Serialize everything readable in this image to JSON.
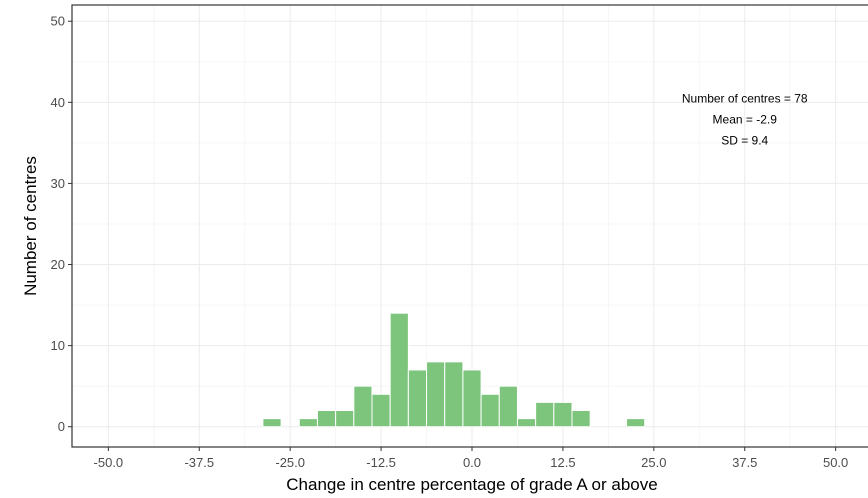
{
  "chart_data": {
    "type": "bar",
    "subtype": "histogram",
    "xlabel": "Change in centre percentage of grade A or above",
    "ylabel": "Number of centres",
    "xlim": [
      -55,
      55
    ],
    "ylim": [
      -2.5,
      52
    ],
    "x_ticks": [
      -50,
      -37.5,
      -25,
      -12.5,
      0,
      12.5,
      25,
      37.5,
      50
    ],
    "x_tick_labels": [
      "-50.0",
      "-37.5",
      "-25.0",
      "-12.5",
      "0.0",
      "12.5",
      "25.0",
      "37.5",
      "50.0"
    ],
    "y_ticks": [
      0,
      10,
      20,
      30,
      40,
      50
    ],
    "y_tick_labels": [
      "0",
      "10",
      "20",
      "30",
      "40",
      "50"
    ],
    "bin_width": 2.5,
    "bins": [
      {
        "x": -27.5,
        "count": 1
      },
      {
        "x": -22.5,
        "count": 1
      },
      {
        "x": -20,
        "count": 2
      },
      {
        "x": -17.5,
        "count": 2
      },
      {
        "x": -15,
        "count": 5
      },
      {
        "x": -12.5,
        "count": 4
      },
      {
        "x": -10,
        "count": 14
      },
      {
        "x": -7.5,
        "count": 7
      },
      {
        "x": -5,
        "count": 8
      },
      {
        "x": -2.5,
        "count": 8
      },
      {
        "x": 0,
        "count": 7
      },
      {
        "x": 2.5,
        "count": 4
      },
      {
        "x": 5,
        "count": 5
      },
      {
        "x": 7.5,
        "count": 1
      },
      {
        "x": 10,
        "count": 3
      },
      {
        "x": 12.5,
        "count": 3
      },
      {
        "x": 15,
        "count": 2
      },
      {
        "x": 22.5,
        "count": 1
      }
    ],
    "bar_color": "#7dc57d",
    "bar_edge_color": "#ffffff",
    "grid": true,
    "annotation": {
      "lines": [
        "Number of centres = 78",
        "Mean = -2.9",
        "SD = 9.4"
      ],
      "x": 37.5,
      "y": 40
    }
  }
}
